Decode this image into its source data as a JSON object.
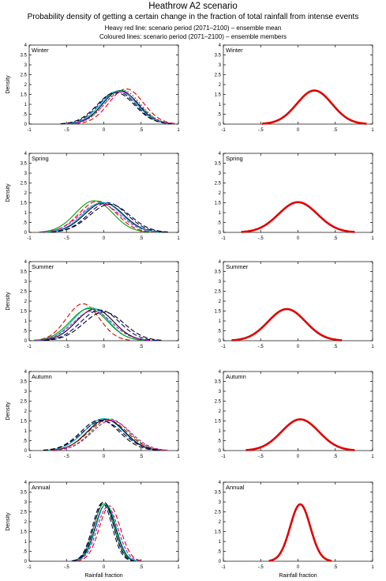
{
  "title": "Heathrow A2 scenario",
  "subtitle": "Probability density of getting a certain change in the fraction of total rainfall from intense events",
  "legend_line1": "Heavy red line: scenario period (2071–2100) – ensemble mean",
  "legend_line2": "Coloured lines: scenario period (2071–2100) – ensemble members",
  "colors": {
    "mean": "#e00000",
    "axes": "#000000"
  },
  "chart_data": [
    {
      "type": "line",
      "panel": "Winter-members",
      "label": "Winter",
      "xlabel": "",
      "ylabel": "Density",
      "xlim": [
        -1,
        1
      ],
      "ylim": [
        0,
        4
      ],
      "xticks": [
        -1,
        -0.5,
        0,
        0.5,
        1
      ],
      "yticks": [
        0,
        0.5,
        1,
        1.5,
        2,
        2.5,
        3,
        3.5,
        4
      ],
      "series": [
        {
          "color": "#000000",
          "dash": "",
          "peak_x": 0.22,
          "peak_y": 1.7,
          "width": 0.235
        },
        {
          "color": "#e00000",
          "dash": "6,3",
          "peak_x": 0.3,
          "peak_y": 1.78,
          "width": 0.23
        },
        {
          "color": "#000080",
          "dash": "6,3",
          "peak_x": 0.18,
          "peak_y": 1.65,
          "width": 0.245
        },
        {
          "color": "#00a000",
          "dash": "2,2",
          "peak_x": 0.25,
          "peak_y": 1.72,
          "width": 0.235
        },
        {
          "color": "#00bcd4",
          "dash": "",
          "peak_x": 0.2,
          "peak_y": 1.68,
          "width": 0.24
        },
        {
          "color": "#cc00cc",
          "dash": "4,2",
          "peak_x": 0.24,
          "peak_y": 1.62,
          "width": 0.24
        },
        {
          "color": "#000000",
          "dash": "6,3",
          "peak_x": 0.16,
          "peak_y": 1.6,
          "width": 0.25
        }
      ]
    },
    {
      "type": "line",
      "panel": "Winter-mean",
      "label": "Winter",
      "xlabel": "",
      "ylabel": "",
      "xlim": [
        -1,
        1
      ],
      "ylim": [
        0,
        4
      ],
      "xticks": [
        -1,
        -0.5,
        0,
        0.5,
        1
      ],
      "yticks": [
        0,
        0.5,
        1,
        1.5,
        2,
        2.5,
        3,
        3.5,
        4
      ],
      "series": [
        {
          "color": "#e00000",
          "dash": "",
          "peak_x": 0.22,
          "peak_y": 1.7,
          "width": 0.235
        }
      ]
    },
    {
      "type": "line",
      "panel": "Spring-members",
      "label": "Spring",
      "xlabel": "",
      "ylabel": "Density",
      "xlim": [
        -1,
        1
      ],
      "ylim": [
        0,
        4
      ],
      "xticks": [
        -1,
        -0.5,
        0,
        0.5,
        1
      ],
      "yticks": [
        0,
        0.5,
        1,
        1.5,
        2,
        2.5,
        3,
        3.5,
        4
      ],
      "series": [
        {
          "color": "#000000",
          "dash": "",
          "peak_x": 0.0,
          "peak_y": 1.5,
          "width": 0.26
        },
        {
          "color": "#00a000",
          "dash": "",
          "peak_x": -0.13,
          "peak_y": 1.6,
          "width": 0.25
        },
        {
          "color": "#e00000",
          "dash": "6,3",
          "peak_x": -0.08,
          "peak_y": 1.58,
          "width": 0.25
        },
        {
          "color": "#000080",
          "dash": "6,3",
          "peak_x": 0.05,
          "peak_y": 1.5,
          "width": 0.26
        },
        {
          "color": "#cc00cc",
          "dash": "4,2",
          "peak_x": -0.05,
          "peak_y": 1.45,
          "width": 0.27
        },
        {
          "color": "#00bcd4",
          "dash": "",
          "peak_x": -0.02,
          "peak_y": 1.52,
          "width": 0.26
        },
        {
          "color": "#000000",
          "dash": "6,3",
          "peak_x": 0.08,
          "peak_y": 1.42,
          "width": 0.27
        }
      ]
    },
    {
      "type": "line",
      "panel": "Spring-mean",
      "label": "Spring",
      "xlabel": "",
      "ylabel": "",
      "xlim": [
        -1,
        1
      ],
      "ylim": [
        0,
        4
      ],
      "xticks": [
        -1,
        -0.5,
        0,
        0.5,
        1
      ],
      "yticks": [
        0,
        0.5,
        1,
        1.5,
        2,
        2.5,
        3,
        3.5,
        4
      ],
      "series": [
        {
          "color": "#e00000",
          "dash": "",
          "peak_x": 0.0,
          "peak_y": 1.53,
          "width": 0.26
        }
      ]
    },
    {
      "type": "line",
      "panel": "Summer-members",
      "label": "Summer",
      "xlabel": "",
      "ylabel": "Density",
      "xlim": [
        -1,
        1
      ],
      "ylim": [
        0,
        4
      ],
      "xticks": [
        -1,
        -0.5,
        0,
        0.5,
        1
      ],
      "yticks": [
        0,
        0.5,
        1,
        1.5,
        2,
        2.5,
        3,
        3.5,
        4
      ],
      "series": [
        {
          "color": "#e00000",
          "dash": "6,3",
          "peak_x": -0.28,
          "peak_y": 1.87,
          "width": 0.22
        },
        {
          "color": "#000000",
          "dash": "",
          "peak_x": -0.12,
          "peak_y": 1.6,
          "width": 0.25
        },
        {
          "color": "#00bcd4",
          "dash": "",
          "peak_x": -0.18,
          "peak_y": 1.68,
          "width": 0.24
        },
        {
          "color": "#00a000",
          "dash": "",
          "peak_x": -0.2,
          "peak_y": 1.62,
          "width": 0.25
        },
        {
          "color": "#cc00cc",
          "dash": "4,2",
          "peak_x": -0.15,
          "peak_y": 1.5,
          "width": 0.26
        },
        {
          "color": "#000080",
          "dash": "6,3",
          "peak_x": -0.05,
          "peak_y": 1.55,
          "width": 0.26
        },
        {
          "color": "#000000",
          "dash": "6,3",
          "peak_x": 0.0,
          "peak_y": 1.45,
          "width": 0.27
        }
      ]
    },
    {
      "type": "line",
      "panel": "Summer-mean",
      "label": "Summer",
      "xlabel": "",
      "ylabel": "",
      "xlim": [
        -1,
        1
      ],
      "ylim": [
        0,
        4
      ],
      "xticks": [
        -1,
        -0.5,
        0,
        0.5,
        1
      ],
      "yticks": [
        0,
        0.5,
        1,
        1.5,
        2,
        2.5,
        3,
        3.5,
        4
      ],
      "series": [
        {
          "color": "#e00000",
          "dash": "",
          "peak_x": -0.15,
          "peak_y": 1.6,
          "width": 0.25
        }
      ]
    },
    {
      "type": "line",
      "panel": "Autumn-members",
      "label": "Autumn",
      "xlabel": "",
      "ylabel": "Density",
      "xlim": [
        -1,
        1
      ],
      "ylim": [
        0,
        4
      ],
      "xticks": [
        -1,
        -0.5,
        0,
        0.5,
        1
      ],
      "yticks": [
        0,
        0.5,
        1,
        1.5,
        2,
        2.5,
        3,
        3.5,
        4
      ],
      "series": [
        {
          "color": "#00bcd4",
          "dash": "",
          "peak_x": 0.0,
          "peak_y": 1.62,
          "width": 0.26
        },
        {
          "color": "#000000",
          "dash": "",
          "peak_x": 0.03,
          "peak_y": 1.58,
          "width": 0.25
        },
        {
          "color": "#00a000",
          "dash": "4,2",
          "peak_x": 0.08,
          "peak_y": 1.6,
          "width": 0.25
        },
        {
          "color": "#e00000",
          "dash": "6,3",
          "peak_x": 0.05,
          "peak_y": 1.55,
          "width": 0.26
        },
        {
          "color": "#000080",
          "dash": "6,3",
          "peak_x": -0.02,
          "peak_y": 1.5,
          "width": 0.27
        },
        {
          "color": "#cc00cc",
          "dash": "4,2",
          "peak_x": 0.1,
          "peak_y": 1.52,
          "width": 0.26
        },
        {
          "color": "#000000",
          "dash": "6,3",
          "peak_x": -0.05,
          "peak_y": 1.55,
          "width": 0.26
        }
      ]
    },
    {
      "type": "line",
      "panel": "Autumn-mean",
      "label": "Autumn",
      "xlabel": "",
      "ylabel": "",
      "xlim": [
        -1,
        1
      ],
      "ylim": [
        0,
        4
      ],
      "xticks": [
        -1,
        -0.5,
        0,
        0.5,
        1
      ],
      "yticks": [
        0,
        0.5,
        1,
        1.5,
        2,
        2.5,
        3,
        3.5,
        4
      ],
      "series": [
        {
          "color": "#e00000",
          "dash": "",
          "peak_x": 0.03,
          "peak_y": 1.58,
          "width": 0.25
        }
      ]
    },
    {
      "type": "line",
      "panel": "Annual-members",
      "label": "Annual",
      "xlabel": "Rainfall fraction",
      "ylabel": "Density",
      "xlim": [
        -1,
        1
      ],
      "ylim": [
        0,
        4
      ],
      "xticks": [
        -1,
        -0.5,
        0,
        0.5,
        1
      ],
      "yticks": [
        0,
        0.5,
        1,
        1.5,
        2,
        2.5,
        3,
        3.5,
        4
      ],
      "series": [
        {
          "color": "#000000",
          "dash": "",
          "peak_x": 0.02,
          "peak_y": 2.85,
          "width": 0.135
        },
        {
          "color": "#e00000",
          "dash": "6,3",
          "peak_x": 0.08,
          "peak_y": 2.8,
          "width": 0.14
        },
        {
          "color": "#00a000",
          "dash": "",
          "peak_x": 0.0,
          "peak_y": 2.9,
          "width": 0.135
        },
        {
          "color": "#000080",
          "dash": "6,3",
          "peak_x": -0.02,
          "peak_y": 2.95,
          "width": 0.13
        },
        {
          "color": "#cc00cc",
          "dash": "4,2",
          "peak_x": 0.05,
          "peak_y": 2.75,
          "width": 0.14
        },
        {
          "color": "#00bcd4",
          "dash": "",
          "peak_x": 0.03,
          "peak_y": 2.88,
          "width": 0.135
        },
        {
          "color": "#000000",
          "dash": "6,3",
          "peak_x": 0.0,
          "peak_y": 3.0,
          "width": 0.13
        }
      ]
    },
    {
      "type": "line",
      "panel": "Annual-mean",
      "label": "Annual",
      "xlabel": "Rainfall fraction",
      "ylabel": "",
      "xlim": [
        -1,
        1
      ],
      "ylim": [
        0,
        4
      ],
      "xticks": [
        -1,
        -0.5,
        0,
        0.5,
        1
      ],
      "yticks": [
        0,
        0.5,
        1,
        1.5,
        2,
        2.5,
        3,
        3.5,
        4
      ],
      "series": [
        {
          "color": "#e00000",
          "dash": "",
          "peak_x": 0.03,
          "peak_y": 2.88,
          "width": 0.135
        }
      ]
    }
  ]
}
